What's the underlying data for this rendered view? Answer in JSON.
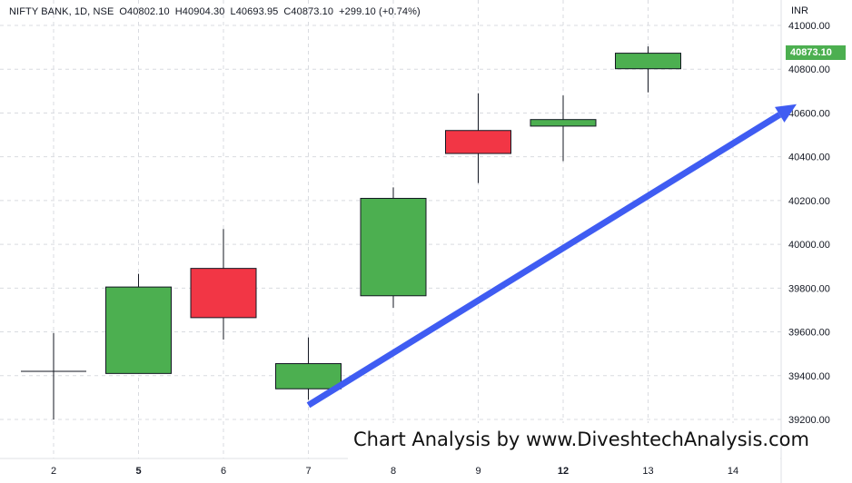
{
  "header": {
    "symbol": "NIFTY BANK, 1D, NSE",
    "open": "O40802.10",
    "high": "H40904.30",
    "low": "L40693.95",
    "close": "C40873.10",
    "change": "+299.10 (+0.74%)"
  },
  "currency_label": "INR",
  "last_price_label": "40873.10",
  "watermark_text": "Chart Analysis by www.DiveshtechAnalysis.com",
  "colors": {
    "up": "#4caf50",
    "down": "#f23645",
    "arrow": "#3f5cf2",
    "grid": "#d9dbe0"
  },
  "chart_data": {
    "type": "candlestick",
    "x_tick_labels": [
      "2",
      "5",
      "6",
      "7",
      "8",
      "9",
      "12",
      "13",
      "14"
    ],
    "y_tick_labels": [
      "39200.00",
      "39400.00",
      "39600.00",
      "39800.00",
      "40000.00",
      "40200.00",
      "40400.00",
      "40600.00",
      "40800.00",
      "41000.00"
    ],
    "ylim": [
      39170,
      41080
    ],
    "grid": true,
    "candles": [
      {
        "x": "2",
        "open": 39420,
        "high": 39595,
        "low": 39200,
        "close": 39420
      },
      {
        "x": "5",
        "open": 39410,
        "high": 39865,
        "low": 39410,
        "close": 39805
      },
      {
        "x": "6",
        "open": 39890,
        "high": 40070,
        "low": 39565,
        "close": 39665
      },
      {
        "x": "7",
        "open": 39340,
        "high": 39575,
        "low": 39290,
        "close": 39455
      },
      {
        "x": "8",
        "open": 39765,
        "high": 40260,
        "low": 39710,
        "close": 40210
      },
      {
        "x": "9",
        "open": 40520,
        "high": 40690,
        "low": 40280,
        "close": 40415
      },
      {
        "x": "12",
        "open": 40540,
        "high": 40680,
        "low": 40380,
        "close": 40570
      },
      {
        "x": "13",
        "open": 40802.1,
        "high": 40904.3,
        "low": 40693.95,
        "close": 40873.1
      }
    ],
    "arrow": {
      "from": {
        "x": "7",
        "y": 39265
      },
      "to": {
        "x": "14",
        "y": 40640
      }
    },
    "last_price": 40873.1
  }
}
